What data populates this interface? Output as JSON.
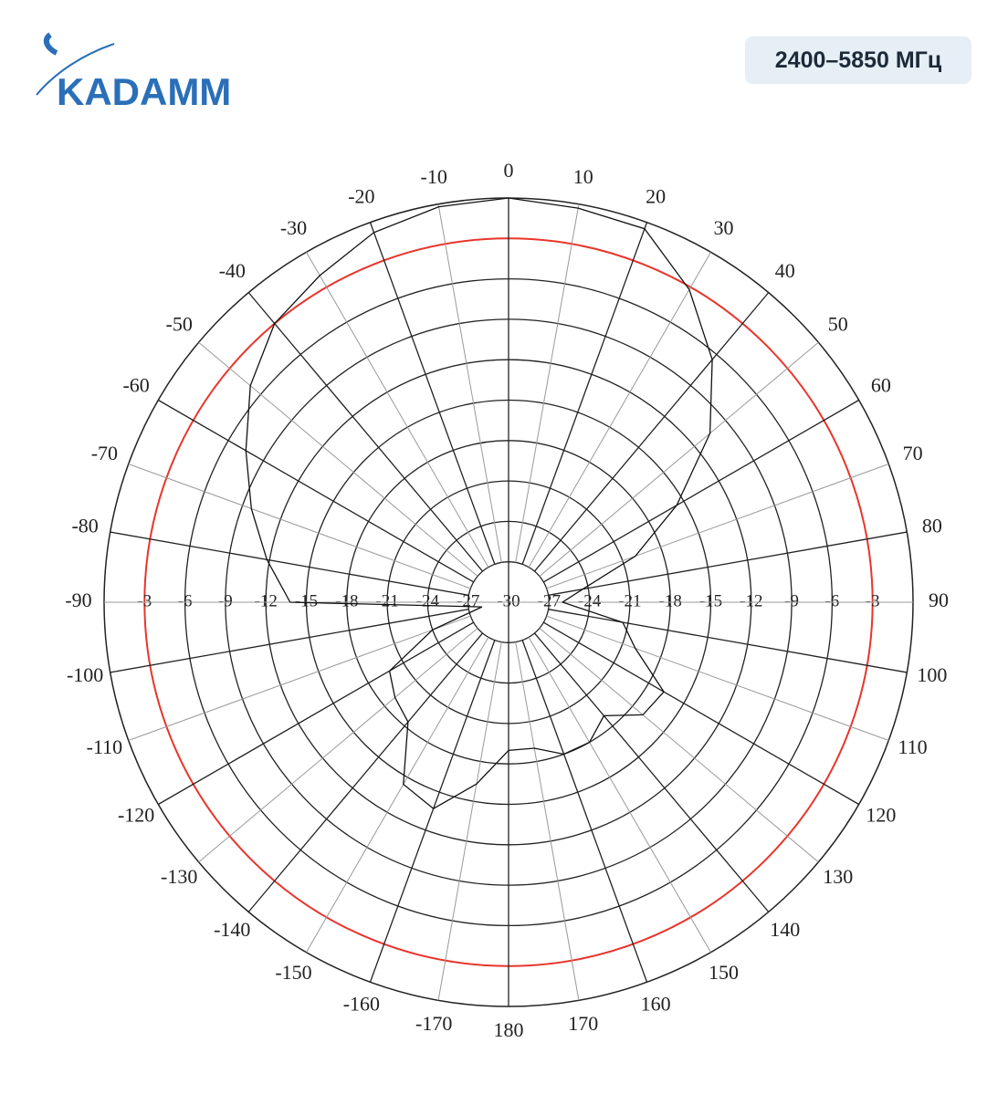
{
  "header": {
    "logo": "KADAMM",
    "badge": "2400–5850 МГц"
  },
  "chart_data": {
    "type": "polar",
    "theta": [
      -180,
      -170,
      -160,
      -150,
      -140,
      -130,
      -120,
      -110,
      -100,
      -90,
      -80,
      -70,
      -60,
      -50,
      -40,
      -30,
      -20,
      -10,
      0,
      10,
      20,
      30,
      40,
      50,
      60,
      70,
      80,
      90,
      100,
      110,
      120,
      130,
      140,
      150,
      160,
      170
    ],
    "series": [
      {
        "color": "#111111",
        "values": [
          -19,
          -16.3,
          -13.7,
          -14.4,
          -18.4,
          -19,
          -19.8,
          -24,
          -28,
          -13.8,
          -11.8,
          -9.7,
          -7.5,
          -5,
          -3,
          -2,
          -0.8,
          -0.2,
          0,
          -0.3,
          -0.5,
          -3.2,
          -6.5,
          -10.5,
          -15.6,
          -20,
          -24.4,
          -26,
          -21.4,
          -20,
          -16.7,
          -17,
          -19,
          -18,
          -18,
          -19
        ]
      }
    ],
    "rlim": [
      -30,
      0
    ],
    "rticks": [
      -3,
      -6,
      -9,
      -12,
      -15,
      -18,
      -21,
      -24,
      -27,
      -30
    ],
    "thetaticks": [
      -170,
      -160,
      -150,
      -140,
      -130,
      -120,
      -110,
      -100,
      -90,
      -80,
      -70,
      -60,
      -50,
      -40,
      -30,
      -20,
      -10,
      0,
      10,
      20,
      30,
      40,
      50,
      60,
      70,
      80,
      90,
      100,
      110,
      120,
      130,
      140,
      150,
      160,
      170,
      180
    ],
    "highlight_ring": -3,
    "highlight_color": "#e8352c",
    "grid": true
  }
}
